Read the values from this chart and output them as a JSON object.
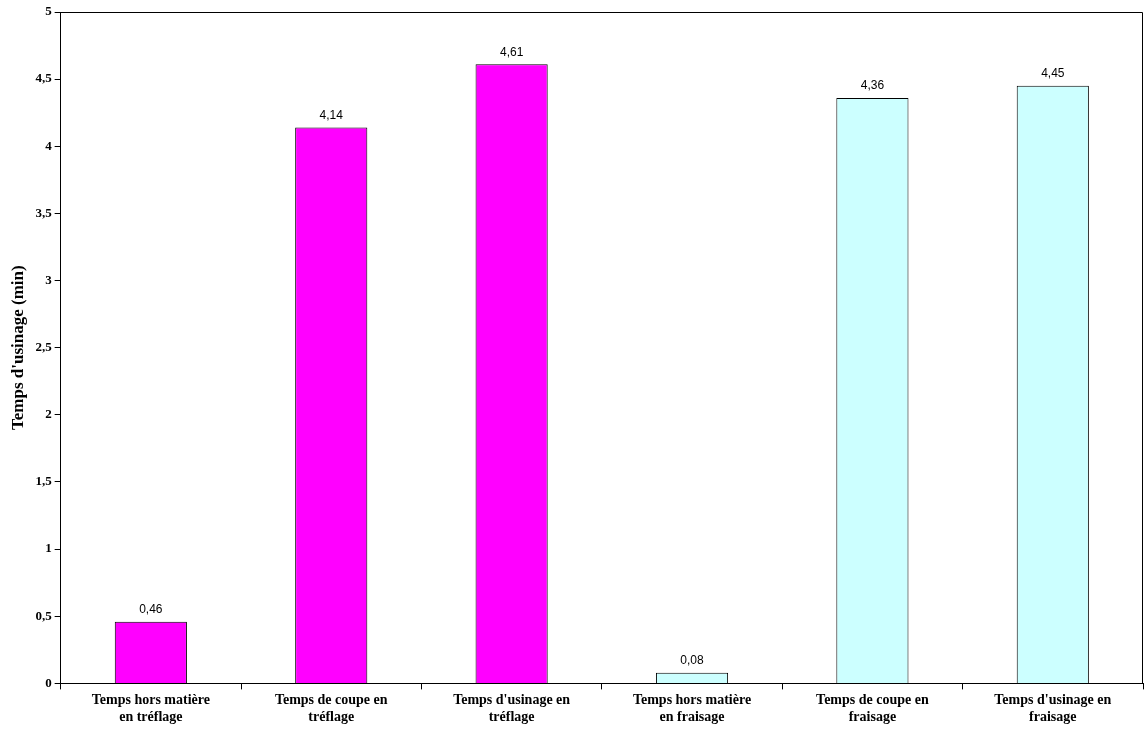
{
  "chart_data": {
    "type": "bar",
    "ylabel": "Temps d'usinage (min)",
    "categories": [
      "Temps hors matière en tréflage",
      "Temps de coupe en tréflage",
      "Temps d'usinage en tréflage",
      "Temps hors matière en fraisage",
      "Temps de coupe en fraisage",
      "Temps d'usinage en fraisage"
    ],
    "values": [
      0.46,
      4.14,
      4.61,
      0.08,
      4.36,
      4.45
    ],
    "colors": [
      "#ff00ff",
      "#ff00ff",
      "#ff00ff",
      "#ccffff",
      "#ccffff",
      "#ccffff"
    ],
    "value_labels": [
      "0,46",
      "4,14",
      "4,61",
      "0,08",
      "4,36",
      "4,45"
    ],
    "ylim": [
      0,
      5
    ],
    "yticks": [
      {
        "value": 0,
        "label": "0"
      },
      {
        "value": 0.5,
        "label": "0,5"
      },
      {
        "value": 1,
        "label": "1"
      },
      {
        "value": 1.5,
        "label": "1,5"
      },
      {
        "value": 2,
        "label": "2"
      },
      {
        "value": 2.5,
        "label": "2,5"
      },
      {
        "value": 3,
        "label": "3"
      },
      {
        "value": 3.5,
        "label": "3,5"
      },
      {
        "value": 4,
        "label": "4"
      },
      {
        "value": 4.5,
        "label": "4,5"
      },
      {
        "value": 5,
        "label": "5"
      }
    ],
    "grid": false,
    "legend": false
  }
}
